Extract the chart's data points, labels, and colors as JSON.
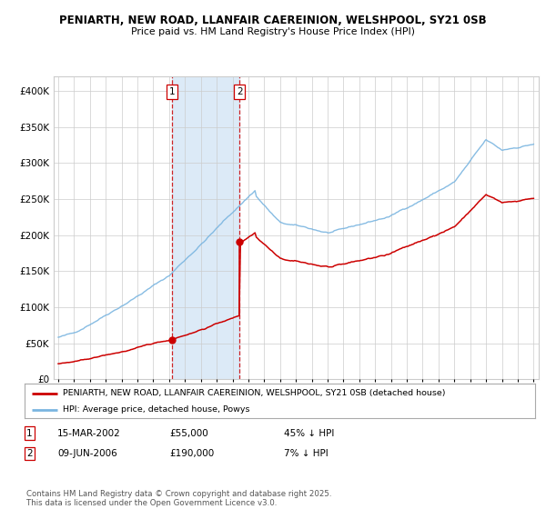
{
  "title1": "PENIARTH, NEW ROAD, LLANFAIR CAEREINION, WELSHPOOL, SY21 0SB",
  "title2": "Price paid vs. HM Land Registry's House Price Index (HPI)",
  "ylim": [
    0,
    420000
  ],
  "yticks": [
    0,
    50000,
    100000,
    150000,
    200000,
    250000,
    300000,
    350000,
    400000
  ],
  "ytick_labels": [
    "£0",
    "£50K",
    "£100K",
    "£150K",
    "£200K",
    "£250K",
    "£300K",
    "£350K",
    "£400K"
  ],
  "hpi_color": "#7ab5e0",
  "price_color": "#cc0000",
  "vline_color": "#cc0000",
  "shade_color": "#dceaf7",
  "transaction1_year": 2002.2,
  "transaction1_price": 55000,
  "transaction2_year": 2006.45,
  "transaction2_price": 190000,
  "legend_line1": "PENIARTH, NEW ROAD, LLANFAIR CAEREINION, WELSHPOOL, SY21 0SB (detached house)",
  "legend_line2": "HPI: Average price, detached house, Powys",
  "annot1_date": "15-MAR-2002",
  "annot1_price": "£55,000",
  "annot1_hpi": "45% ↓ HPI",
  "annot2_date": "09-JUN-2006",
  "annot2_price": "£190,000",
  "annot2_hpi": "7% ↓ HPI",
  "footer": "Contains HM Land Registry data © Crown copyright and database right 2025.\nThis data is licensed under the Open Government Licence v3.0.",
  "bg_color": "#ffffff",
  "grid_color": "#cccccc",
  "xlim_left": 1994.7,
  "xlim_right": 2025.3
}
